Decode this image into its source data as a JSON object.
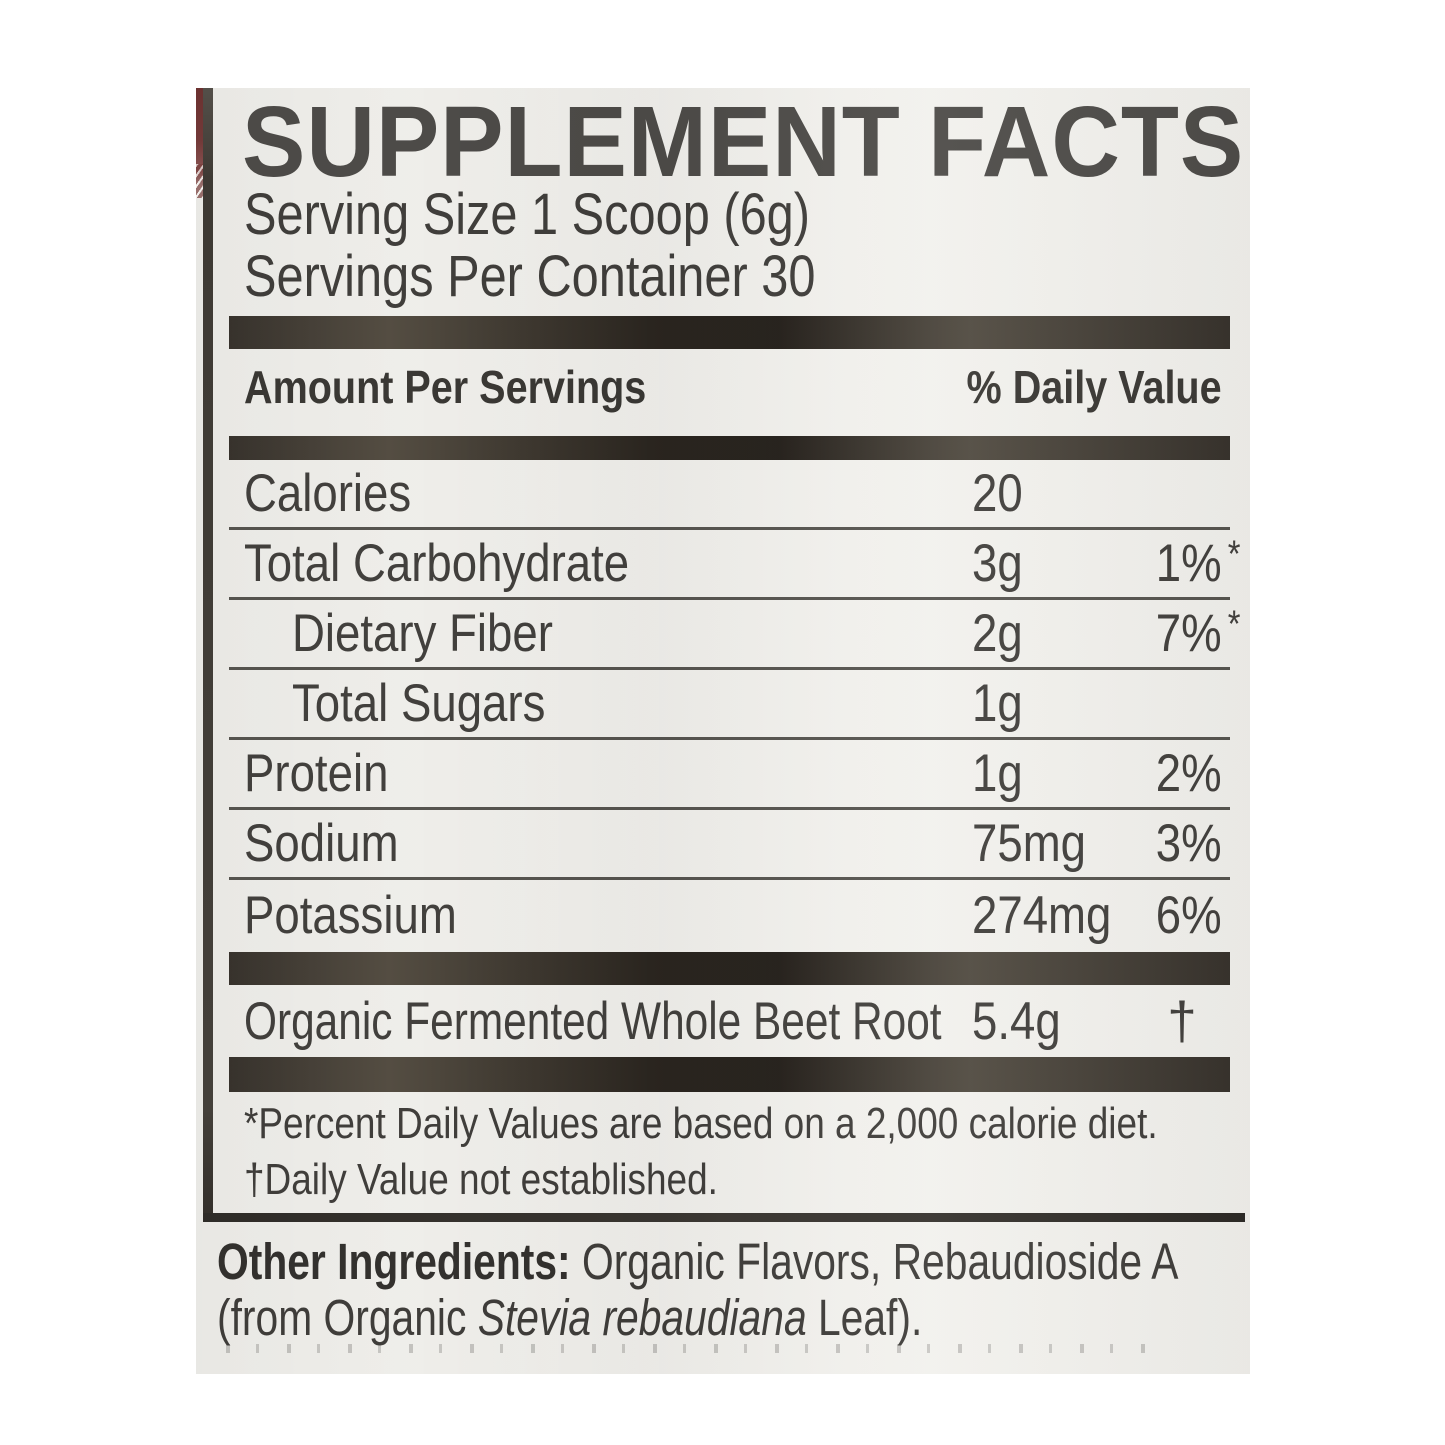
{
  "label": {
    "title": "SUPPLEMENT FACTS",
    "serving_size": "Serving Size 1 Scoop (6g)",
    "servings_per_container": "Servings Per Container 30",
    "header": {
      "amount_col": "Amount Per Servings",
      "daily_value_col": "% Daily Value"
    },
    "rows": [
      {
        "name": "Calories",
        "amount": "20",
        "pct": "",
        "mark": "",
        "indent": false
      },
      {
        "name": "Total Carbohydrate",
        "amount": "3g",
        "pct": "1%",
        "mark": "*",
        "indent": false
      },
      {
        "name": "Dietary Fiber",
        "amount": "2g",
        "pct": "7%",
        "mark": "*",
        "indent": true
      },
      {
        "name": "Total Sugars",
        "amount": "1g",
        "pct": "",
        "mark": "",
        "indent": true
      },
      {
        "name": "Protein",
        "amount": "1g",
        "pct": "2%",
        "mark": "",
        "indent": false
      },
      {
        "name": "Sodium",
        "amount": "75mg",
        "pct": "3%",
        "mark": "",
        "indent": false
      },
      {
        "name": "Potassium",
        "amount": "274mg",
        "pct": "6%",
        "mark": "",
        "indent": false
      }
    ],
    "extra_row": {
      "name": "Organic Fermented Whole Beet Root",
      "amount": "5.4g",
      "daily_value_symbol": "†"
    },
    "footnotes": {
      "percent": "*Percent Daily Values are based on a 2,000 calorie diet.",
      "dagger": "†Daily Value not established."
    },
    "other_ingredients": {
      "lead": "Other Ingredients:",
      "line1_rest": " Organic Flavors, Rebaudioside A",
      "line2_pre": "(from Organic ",
      "line2_italic": "Stevia rebaudiana",
      "line2_post": " Leaf)."
    }
  },
  "colors": {
    "page_background": "#ffffff",
    "label_background": "#f0efeb",
    "text": "#42403d",
    "separator_bar": "#38332d",
    "hairline": "#56544f",
    "edge_strip_red": "#743a39"
  }
}
